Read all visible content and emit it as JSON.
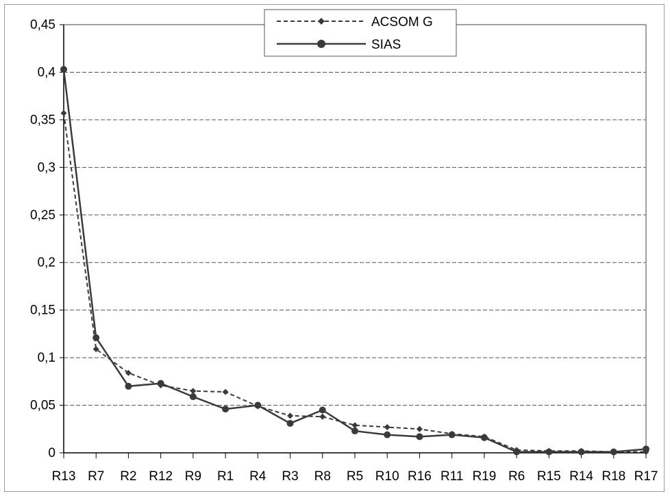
{
  "chart_data": {
    "type": "line",
    "title": "",
    "xlabel": "",
    "ylabel": "",
    "categories": [
      "R13",
      "R7",
      "R2",
      "R12",
      "R9",
      "R1",
      "R4",
      "R3",
      "R8",
      "R5",
      "R10",
      "R16",
      "R11",
      "R19",
      "R6",
      "R15",
      "R14",
      "R18",
      "R17"
    ],
    "ylim": [
      0,
      0.45
    ],
    "y_ticks": [
      "0",
      "0,05",
      "0,1",
      "0,15",
      "0,2",
      "0,25",
      "0,3",
      "0,35",
      "0,4",
      "0,45"
    ],
    "y_tick_values": [
      0,
      0.05,
      0.1,
      0.15,
      0.2,
      0.25,
      0.3,
      0.35,
      0.4,
      0.45
    ],
    "grid": "horizontal dashed",
    "legend_position": "top-center",
    "series": [
      {
        "name": "ACSOM G",
        "style": "dashed",
        "marker": "diamond",
        "color": "#3a3a3a",
        "values": [
          0.357,
          0.109,
          0.084,
          0.071,
          0.065,
          0.064,
          0.049,
          0.039,
          0.038,
          0.029,
          0.027,
          0.025,
          0.02,
          0.017,
          0.003,
          0.002,
          0.002,
          0.001,
          0.001
        ]
      },
      {
        "name": "SIAS",
        "style": "solid",
        "marker": "circle",
        "color": "#3a3a3a",
        "values": [
          0.403,
          0.121,
          0.07,
          0.073,
          0.059,
          0.046,
          0.05,
          0.031,
          0.045,
          0.023,
          0.019,
          0.017,
          0.019,
          0.016,
          0.001,
          0.001,
          0.001,
          0.001,
          0.004
        ]
      }
    ]
  }
}
